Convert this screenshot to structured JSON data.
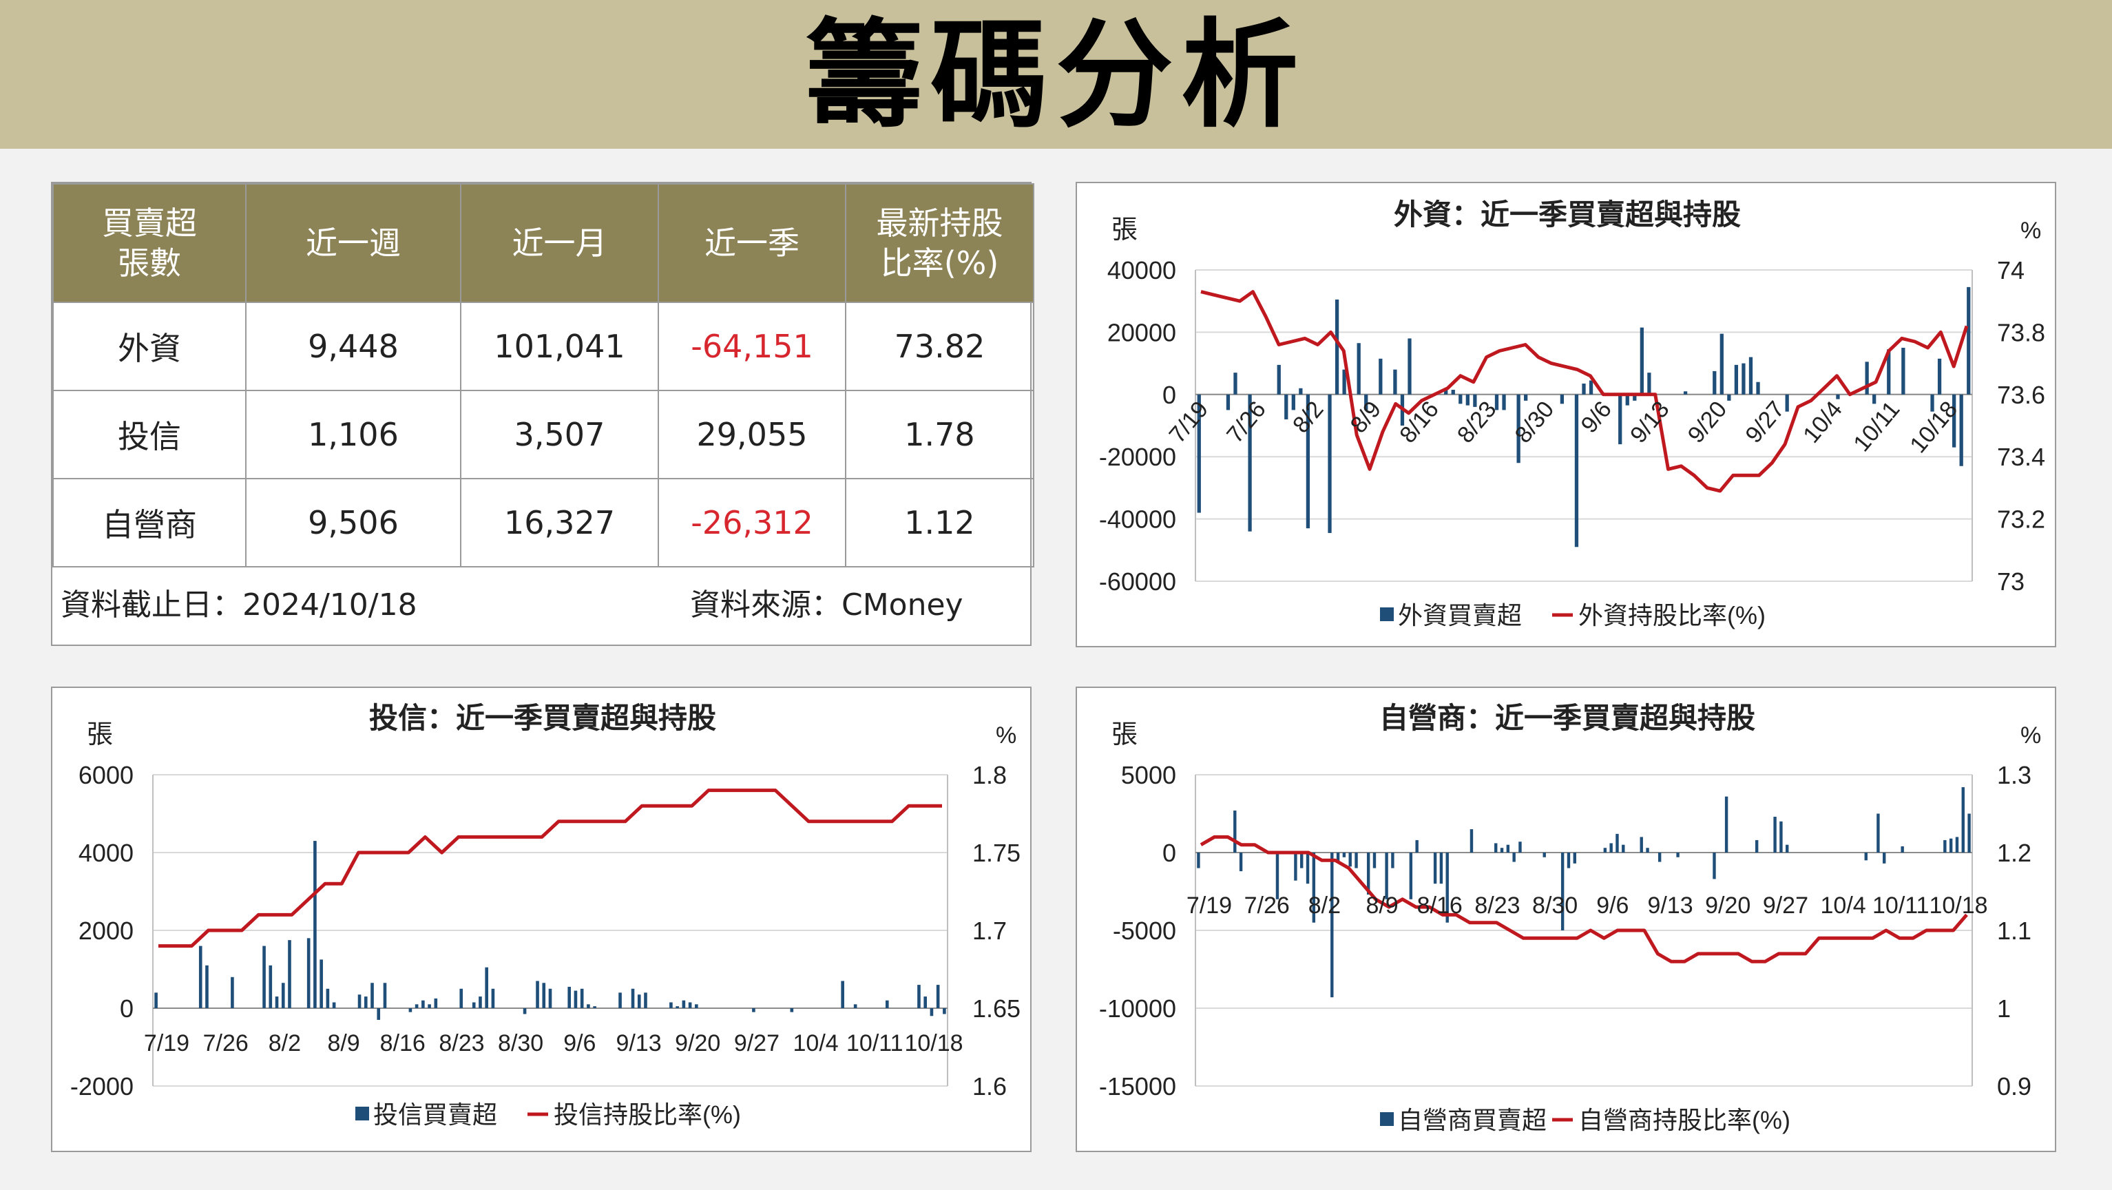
{
  "page_title": "籌碼分析",
  "summary": {
    "header": [
      "買賣超\n張數",
      "近一週",
      "近一月",
      "近一季",
      "最新持股\n比率(%)"
    ],
    "rows": [
      {
        "name": "外資",
        "week": "9,448",
        "month": "101,041",
        "quarter": "-64,151",
        "ratio": "73.82"
      },
      {
        "name": "投信",
        "week": "1,106",
        "month": "3,507",
        "quarter": "29,055",
        "ratio": "1.78"
      },
      {
        "name": "自營商",
        "week": "9,506",
        "month": "16,327",
        "quarter": "-26,312",
        "ratio": "1.12"
      }
    ],
    "date_note": "資料截止日：2024/10/18",
    "source_note": "資料來源：CMoney"
  },
  "colors": {
    "bar": "#1f4e79",
    "line": "#c0181f",
    "header_bg": "#c8bf9b",
    "table_header": "#8c8357",
    "negative": "#d8262f"
  },
  "chart_data": [
    {
      "type": "bar+line",
      "title": "外資：近一季買賣超與持股",
      "ylabel_left": "張",
      "ylabel_right": "%",
      "ylim_left": [
        -60000,
        40000
      ],
      "yticks_left": [
        40000,
        20000,
        0,
        -20000,
        -40000,
        -60000
      ],
      "ylim_right": [
        73,
        74
      ],
      "yticks_right": [
        "74",
        "73.8",
        "73.6",
        "73.4",
        "73.2",
        "73"
      ],
      "x_ticks": [
        "7/19",
        "7/26",
        "8/2",
        "8/9",
        "8/16",
        "8/23",
        "8/30",
        "9/6",
        "9/13",
        "9/20",
        "9/27",
        "10/4",
        "10/11",
        "10/18"
      ],
      "tick_labels_rotated": true,
      "legend": [
        "外資買賣超",
        "外資持股比率(%)"
      ],
      "bars": [
        -38000,
        0,
        0,
        0,
        -5000,
        7000,
        0,
        -44000,
        0,
        0,
        0,
        9500,
        -8000,
        -5000,
        2000,
        -43000,
        0,
        0,
        -44500,
        30500,
        8000,
        0,
        16500,
        -5000,
        0,
        11500,
        0,
        8000,
        -10000,
        18000,
        0,
        0,
        0,
        0,
        2000,
        1500,
        -3000,
        -3500,
        -4000,
        0,
        0,
        -5000,
        -5000,
        0,
        -22000,
        -2000,
        0,
        0,
        0,
        0,
        -3000,
        0,
        -49000,
        3500,
        4500,
        0,
        0,
        0,
        -16000,
        -3500,
        -2000,
        21500,
        7000,
        0,
        0,
        0,
        0,
        1000,
        0,
        0,
        0,
        7500,
        19500,
        -2000,
        9500,
        10000,
        12000,
        4000,
        0,
        0,
        0,
        -5500,
        0,
        0,
        0,
        0,
        0,
        0,
        -1500,
        0,
        0,
        0,
        10500,
        -3000,
        0,
        14500,
        0,
        15000,
        0,
        0,
        0,
        -5500,
        11500,
        0,
        -17000,
        -23000,
        34500
      ],
      "line": [
        73.93,
        73.92,
        73.91,
        73.9,
        73.93,
        73.85,
        73.76,
        73.77,
        73.78,
        73.76,
        73.8,
        73.74,
        73.47,
        73.36,
        73.48,
        73.57,
        73.54,
        73.58,
        73.6,
        73.62,
        73.66,
        73.64,
        73.72,
        73.74,
        73.75,
        73.76,
        73.72,
        73.7,
        73.69,
        73.68,
        73.66,
        73.6,
        73.6,
        73.6,
        73.6,
        73.6,
        73.36,
        73.37,
        73.34,
        73.3,
        73.29,
        73.34,
        73.34,
        73.34,
        73.38,
        73.44,
        73.56,
        73.58,
        73.62,
        73.66,
        73.6,
        73.62,
        73.64,
        73.74,
        73.78,
        73.77,
        73.75,
        73.8,
        73.69,
        73.82
      ]
    },
    {
      "type": "bar+line",
      "title": "投信：近一季買賣超與持股",
      "ylabel_left": "張",
      "ylabel_right": "%",
      "ylim_left": [
        -2000,
        6000
      ],
      "yticks_left": [
        6000,
        4000,
        2000,
        0,
        -2000
      ],
      "ylim_right": [
        1.6,
        1.8
      ],
      "yticks_right": [
        "1.8",
        "1.75",
        "1.7",
        "1.65",
        "1.6"
      ],
      "x_ticks": [
        "7/19",
        "7/26",
        "8/2",
        "8/9",
        "8/16",
        "8/23",
        "8/30",
        "9/6",
        "9/13",
        "9/20",
        "9/27",
        "10/4",
        "10/11",
        "10/18"
      ],
      "tick_labels_rotated": false,
      "legend": [
        "投信買賣超",
        "投信持股比率(%)"
      ],
      "bars": [
        400,
        0,
        0,
        0,
        0,
        0,
        0,
        1600,
        1100,
        0,
        0,
        0,
        800,
        0,
        0,
        0,
        0,
        1600,
        1100,
        300,
        650,
        1750,
        0,
        0,
        1800,
        4300,
        1250,
        500,
        150,
        0,
        0,
        0,
        350,
        300,
        650,
        -300,
        650,
        0,
        0,
        0,
        -100,
        100,
        200,
        100,
        250,
        0,
        0,
        0,
        500,
        0,
        150,
        300,
        1050,
        500,
        0,
        0,
        0,
        0,
        -150,
        0,
        700,
        650,
        500,
        0,
        0,
        550,
        450,
        500,
        100,
        50,
        0,
        0,
        0,
        400,
        0,
        500,
        350,
        400,
        0,
        0,
        0,
        150,
        50,
        200,
        150,
        100,
        0,
        0,
        0,
        0,
        0,
        0,
        0,
        0,
        -100,
        0,
        0,
        0,
        0,
        0,
        -100,
        0,
        0,
        0,
        0,
        0,
        0,
        0,
        700,
        0,
        100,
        0,
        0,
        0,
        0,
        200,
        0,
        0,
        0,
        0,
        600,
        300,
        -200,
        600,
        -150
      ],
      "line": [
        1.69,
        1.69,
        1.69,
        1.7,
        1.7,
        1.7,
        1.71,
        1.71,
        1.71,
        1.72,
        1.73,
        1.73,
        1.75,
        1.75,
        1.75,
        1.75,
        1.76,
        1.75,
        1.76,
        1.76,
        1.76,
        1.76,
        1.76,
        1.76,
        1.77,
        1.77,
        1.77,
        1.77,
        1.77,
        1.78,
        1.78,
        1.78,
        1.78,
        1.79,
        1.79,
        1.79,
        1.79,
        1.79,
        1.78,
        1.77,
        1.77,
        1.77,
        1.77,
        1.77,
        1.77,
        1.78,
        1.78,
        1.78
      ]
    },
    {
      "type": "bar+line",
      "title": "自營商：近一季買賣超與持股",
      "ylabel_left": "張",
      "ylabel_right": "%",
      "ylim_left": [
        -15000,
        5000
      ],
      "yticks_left": [
        5000,
        0,
        -5000,
        -10000,
        -15000
      ],
      "ylim_right": [
        0.9,
        1.3
      ],
      "yticks_right": [
        "1.3",
        "1.2",
        "1.1",
        "1",
        "0.9"
      ],
      "x_ticks": [
        "7/19",
        "7/26",
        "8/2",
        "8/9",
        "8/16",
        "8/23",
        "8/30",
        "9/6",
        "9/13",
        "9/20",
        "9/27",
        "10/4",
        "10/11",
        "10/18"
      ],
      "tick_labels_rotated": false,
      "legend": [
        "自營商買賣超",
        "自營商持股比率(%)"
      ],
      "bars": [
        -1000,
        0,
        0,
        0,
        0,
        0,
        2700,
        -1200,
        0,
        0,
        0,
        0,
        0,
        -3000,
        0,
        0,
        -1800,
        -1000,
        -2000,
        -4500,
        0,
        0,
        -9300,
        -600,
        -300,
        -900,
        -1000,
        0,
        -2700,
        -1000,
        0,
        -3000,
        -1000,
        0,
        0,
        -3000,
        800,
        0,
        0,
        -2000,
        -2000,
        -4500,
        0,
        0,
        0,
        1500,
        0,
        0,
        0,
        600,
        300,
        500,
        -600,
        700,
        0,
        0,
        0,
        -300,
        0,
        0,
        -5000,
        -1000,
        -700,
        0,
        0,
        0,
        0,
        300,
        600,
        1200,
        500,
        0,
        0,
        1000,
        300,
        0,
        -600,
        0,
        0,
        -300,
        0,
        0,
        0,
        0,
        0,
        -1700,
        0,
        3600,
        0,
        0,
        0,
        0,
        800,
        0,
        0,
        2300,
        2000,
        500,
        0,
        0,
        0,
        0,
        0,
        0,
        0,
        0,
        0,
        0,
        0,
        0,
        -500,
        0,
        2500,
        -700,
        0,
        0,
        400,
        0,
        0,
        0,
        0,
        0,
        0,
        800,
        900,
        1000,
        4200,
        2500
      ],
      "line": [
        1.21,
        1.22,
        1.22,
        1.21,
        1.21,
        1.2,
        1.2,
        1.2,
        1.2,
        1.19,
        1.19,
        1.18,
        1.16,
        1.14,
        1.13,
        1.14,
        1.13,
        1.13,
        1.12,
        1.12,
        1.11,
        1.11,
        1.11,
        1.1,
        1.09,
        1.09,
        1.09,
        1.09,
        1.09,
        1.1,
        1.09,
        1.1,
        1.1,
        1.1,
        1.07,
        1.06,
        1.06,
        1.07,
        1.07,
        1.07,
        1.07,
        1.06,
        1.06,
        1.07,
        1.07,
        1.07,
        1.09,
        1.09,
        1.09,
        1.09,
        1.09,
        1.1,
        1.09,
        1.09,
        1.1,
        1.1,
        1.1,
        1.12
      ]
    }
  ]
}
